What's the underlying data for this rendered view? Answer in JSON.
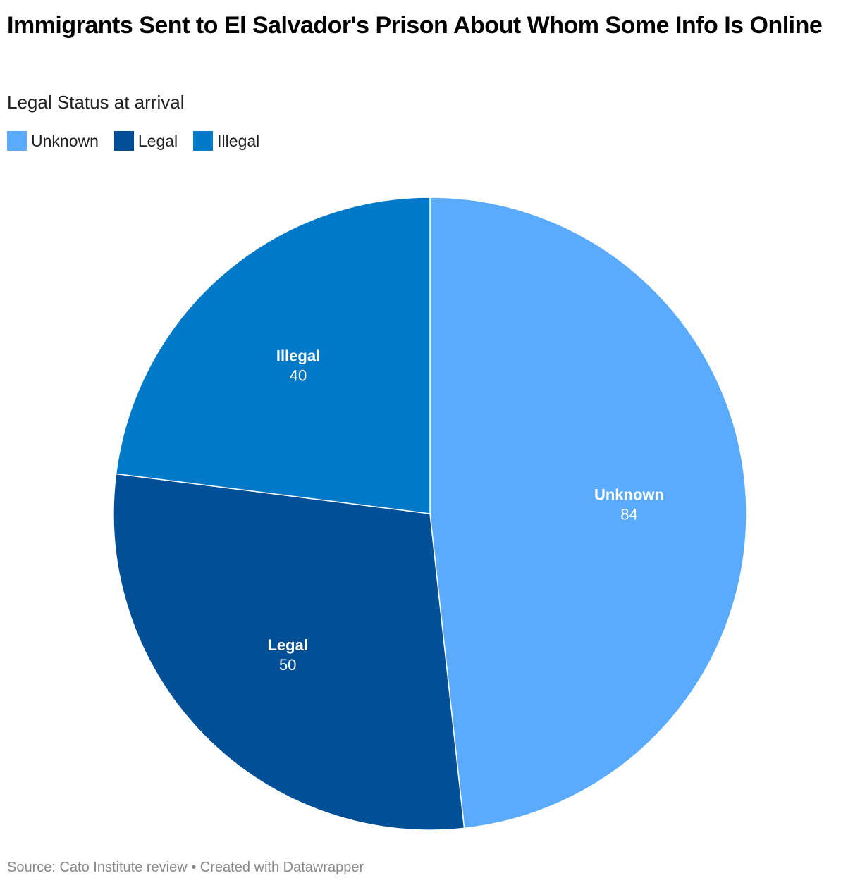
{
  "title": "Immigrants Sent to El Salvador's Prison About Whom Some Info Is Online",
  "subtitle": "Legal Status at arrival",
  "legend": [
    {
      "label": "Unknown",
      "color": "#5aaafd"
    },
    {
      "label": "Legal",
      "color": "#004f97"
    },
    {
      "label": "Illegal",
      "color": "#0079c9"
    }
  ],
  "footer": "Source: Cato Institute review • Created with Datawrapper",
  "chart_data": {
    "type": "pie",
    "title": "Immigrants Sent to El Salvador's Prison About Whom Some Info Is Online",
    "subtitle": "Legal Status at arrival",
    "categories": [
      "Unknown",
      "Legal",
      "Illegal"
    ],
    "values": [
      84,
      50,
      40
    ],
    "colors": [
      "#5aaafd",
      "#004f97",
      "#0079c9"
    ],
    "legend_position": "top-left",
    "start_angle": "12 o'clock, clockwise"
  }
}
